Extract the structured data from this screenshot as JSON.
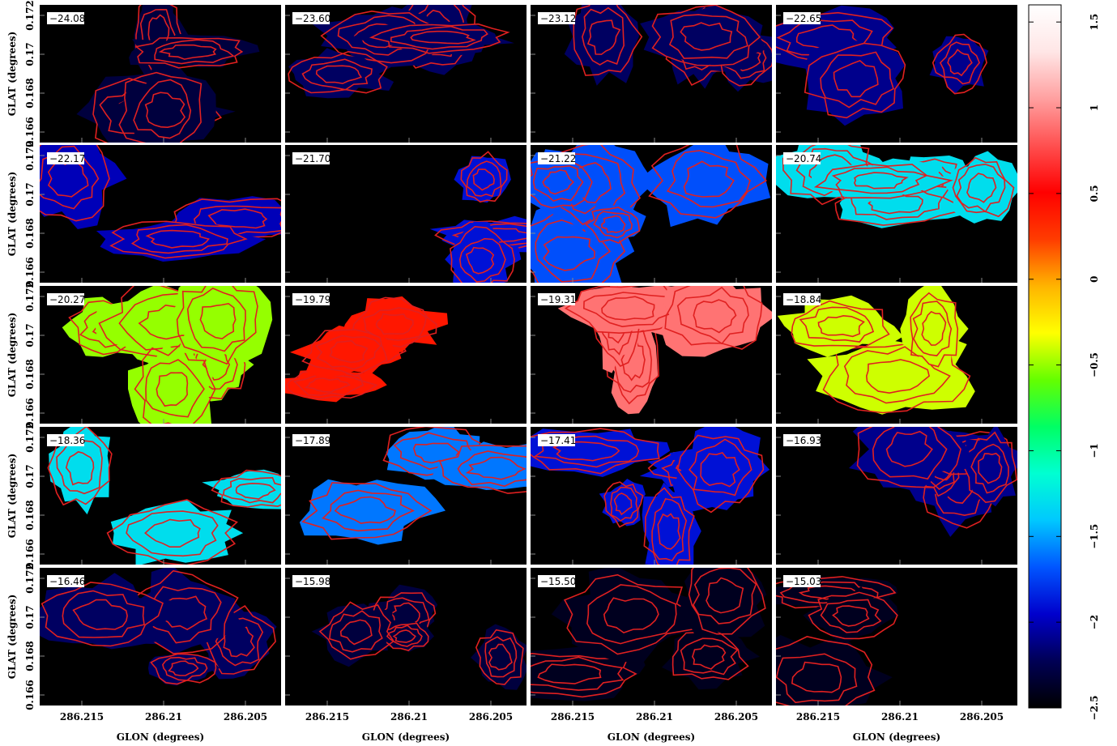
{
  "chart_data": {
    "type": "heatmap",
    "description_kind": "channel-map grid",
    "rows": 5,
    "cols": 4,
    "velocity_labels": [
      "−24.08",
      "−23.60",
      "−23.12",
      "−22.65",
      "−22.17",
      "−21.70",
      "−21.22",
      "−20.74",
      "−20.27",
      "−19.79",
      "−19.31",
      "−18.84",
      "−18.36",
      "−17.89",
      "−17.41",
      "−16.93",
      "−16.46",
      "−15.98",
      "−15.50",
      "−15.03"
    ],
    "panel_colorbar_values": [
      -2.3,
      -2.2,
      -2.2,
      -2.1,
      -2.0,
      -1.9,
      -1.7,
      -1.3,
      -0.5,
      0.4,
      0.9,
      -0.4,
      -1.3,
      -1.6,
      -1.9,
      -2.1,
      -2.2,
      -2.3,
      -2.4,
      -2.4
    ],
    "xlabel": "GLON (degrees)",
    "ylabel": "GLAT (degrees)",
    "x_ticks": [
      "286.215",
      "286.21",
      "286.205"
    ],
    "y_ticks": [
      "0.166",
      "0.168",
      "0.17",
      "0.172"
    ],
    "x_range": [
      286.2165,
      286.2015
    ],
    "y_range": [
      0.1655,
      0.1735
    ],
    "colorbar": {
      "ticks": [
        "−2.5",
        "−2",
        "−1.5",
        "−1",
        "−0.5",
        "0",
        "0.5",
        "1",
        "1.5"
      ],
      "tick_values": [
        -2.5,
        -2,
        -1.5,
        -1,
        -0.5,
        0,
        0.5,
        1,
        1.5
      ],
      "range": [
        -2.5,
        1.6
      ],
      "colors": [
        "#000000",
        "#000055",
        "#0000cc",
        "#0055ff",
        "#00c8ff",
        "#00ffd2",
        "#00ff64",
        "#64ff00",
        "#ffff00",
        "#ffb400",
        "#ff3c00",
        "#ff0000",
        "#ff5050",
        "#ffa0a0",
        "#ffe6e6",
        "#ffffff"
      ]
    },
    "contour_color": "#e02020",
    "grid": false
  }
}
